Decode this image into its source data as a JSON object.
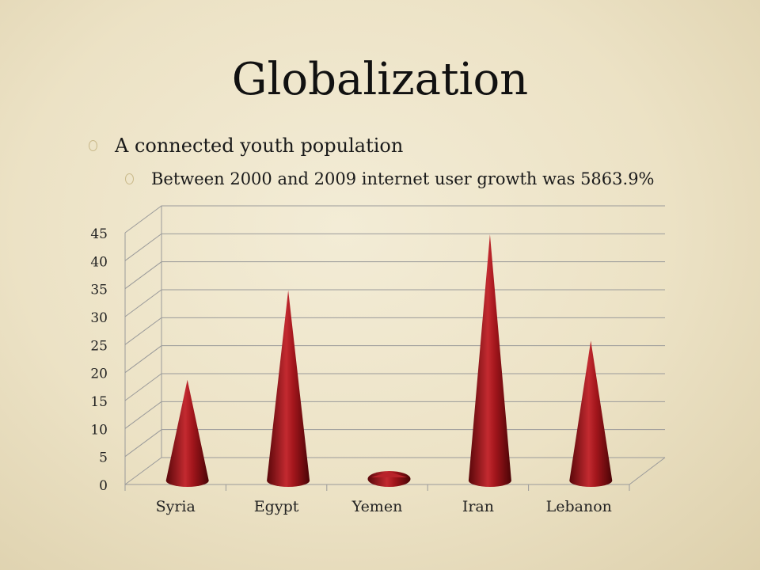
{
  "slide": {
    "title": "Globalization",
    "bullets": [
      {
        "text": "A connected youth population",
        "level": 1
      },
      {
        "text": "Between 2000 and 2009 internet user growth was 5863.9%",
        "level": 2
      }
    ]
  },
  "colors": {
    "cone": "#8b1117",
    "cone_light": "#d23a3f",
    "cone_dark": "#4e0507",
    "grid": "#9a9a9a"
  },
  "chart_data": {
    "type": "bar",
    "bar_shape": "cone-3d",
    "categories": [
      "Syria",
      "Egypt",
      "Yemen",
      "Iran",
      "Lebanon"
    ],
    "values": [
      18,
      34,
      1,
      44,
      25
    ],
    "ylim": [
      0,
      45
    ],
    "yticks": [
      0,
      5,
      10,
      15,
      20,
      25,
      30,
      35,
      40,
      45
    ],
    "grid": true,
    "legend": "none"
  }
}
